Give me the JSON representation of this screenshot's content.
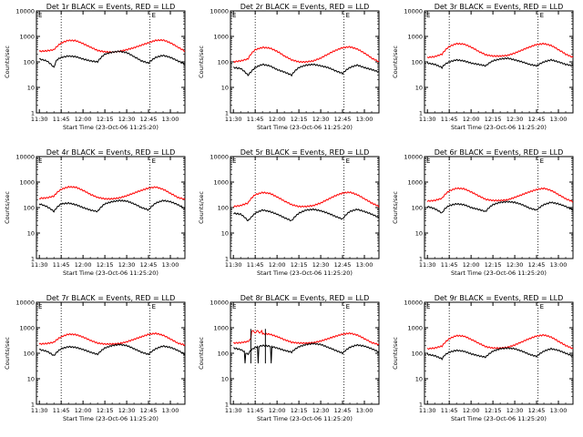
{
  "x_tick_labels_short": [
    "11:30",
    "11:45",
    "12:00",
    "12:15",
    "12:30",
    "12:45",
    "13:00"
  ],
  "panel_row1_col1_ticks": [
    "11:30",
    "11:45",
    "12:00",
    "12:15",
    "12:30",
    "12:45",
    "13:00"
  ],
  "y_tick_labels": [
    "1",
    "10",
    "100",
    "1000",
    "10000"
  ],
  "xlabel": "Start Time (23-Oct-06 11:25:20)",
  "ylabel": "Counts/sec",
  "marker_E": "E",
  "chart_data": [
    {
      "type": "line",
      "title": "Det 1r BLACK = Events, RED = LLD",
      "x_minutes_from_1130": [
        0,
        5,
        10,
        12,
        15,
        20,
        25,
        30,
        35,
        40,
        45,
        50,
        55,
        60,
        65,
        70,
        75,
        80,
        85,
        90,
        95,
        100
      ],
      "series": [
        {
          "name": "Events",
          "color": "#000000",
          "values": [
            120,
            105,
            100,
            60,
            110,
            130,
            140,
            120,
            100,
            200,
            240,
            230,
            200,
            150,
            110,
            90,
            80,
            130,
            150,
            140,
            110,
            90
          ]
        },
        {
          "name": "LLD",
          "color": "#ff0000",
          "values": [
            230,
            250,
            300,
            360,
            460,
            600,
            720,
            600,
            420,
            300,
            240,
            230,
            240,
            280,
            340,
            420,
            520,
            680,
            760,
            620,
            400,
            270
          ]
        }
      ],
      "dotted_x": [
        15,
        78
      ],
      "ylim": [
        1,
        10000
      ],
      "log_y": true
    },
    {
      "type": "line",
      "title": "Det 2r BLACK = Events, RED = LLD",
      "series": [
        {
          "name": "Events",
          "color": "#000000"
        },
        {
          "name": "LLD",
          "color": "#ff0000"
        }
      ]
    },
    {
      "type": "line",
      "title": "Det 3r BLACK = Events, RED = LLD",
      "series": [
        {
          "name": "Events",
          "color": "#000000"
        },
        {
          "name": "LLD",
          "color": "#ff0000"
        }
      ]
    },
    {
      "type": "line",
      "title": "Det 4r BLACK = Events, RED = LLD",
      "series": [
        {
          "name": "Events",
          "color": "#000000"
        },
        {
          "name": "LLD",
          "color": "#ff0000"
        }
      ]
    },
    {
      "type": "line",
      "title": "Det 5r BLACK = Events, RED = LLD",
      "series": [
        {
          "name": "Events",
          "color": "#000000"
        },
        {
          "name": "LLD",
          "color": "#ff0000"
        }
      ]
    },
    {
      "type": "line",
      "title": "Det 6r BLACK = Events, RED = LLD",
      "series": [
        {
          "name": "Events",
          "color": "#000000"
        },
        {
          "name": "LLD",
          "color": "#ff0000"
        }
      ]
    },
    {
      "type": "line",
      "title": "Det 7r BLACK = Events, RED = LLD",
      "series": [
        {
          "name": "Events",
          "color": "#000000"
        },
        {
          "name": "LLD",
          "color": "#ff0000"
        }
      ]
    },
    {
      "type": "line",
      "title": "Det 8r BLACK = Events, RED = LLD",
      "series": [
        {
          "name": "Events",
          "color": "#000000"
        },
        {
          "name": "LLD",
          "color": "#ff0000"
        }
      ]
    },
    {
      "type": "line",
      "title": "Det 9r BLACK = Events, RED = LLD",
      "series": [
        {
          "name": "Events",
          "color": "#000000"
        },
        {
          "name": "LLD",
          "color": "#ff0000"
        }
      ]
    }
  ],
  "panel_x_ticks": [
    [
      "11:30",
      "11:45",
      "12:00",
      "12:15",
      "12:30",
      "12:45",
      "13:00"
    ],
    [
      "11:30",
      "11:45",
      "12:00",
      "12:15",
      "12:30",
      "12:45",
      "13:00"
    ],
    [
      "11:30",
      "11:45",
      "12:00",
      "12:15",
      "12:30",
      "12:45",
      "13:00"
    ],
    [
      "11:30",
      "11:45",
      "12:00",
      "12:15",
      "12:30",
      "12:45",
      "13:00"
    ],
    [
      "11:30",
      "11:45",
      "12:00",
      "12:15",
      "12:30",
      "12:45",
      "13:00"
    ],
    [
      "11:30",
      "11:45",
      "12:00",
      "12:15",
      "12:30",
      "12:45",
      "13:00"
    ],
    [
      "11:30",
      "11:45",
      "12:00",
      "12:15",
      "12:30",
      "12:45",
      "13:00"
    ],
    [
      "11:30",
      "11:45",
      "12:00",
      "12:15",
      "12:30",
      "12:45",
      "13:00"
    ],
    [
      "11:30",
      "11:45",
      "12:00",
      "12:15",
      "12:30",
      "12:45",
      "13:00"
    ]
  ],
  "panel_curves": [
    {
      "events": [
        130,
        110,
        60,
        120,
        150,
        170,
        160,
        130,
        110,
        100,
        200,
        240,
        260,
        230,
        160,
        110,
        90,
        150,
        180,
        150,
        110,
        80
      ],
      "lld": [
        260,
        270,
        300,
        400,
        550,
        700,
        680,
        520,
        380,
        280,
        250,
        240,
        260,
        300,
        360,
        450,
        560,
        700,
        720,
        560,
        380,
        260
      ],
      "dotted": [
        15,
        76
      ],
      "spikes": false
    },
    {
      "events": [
        60,
        55,
        30,
        40,
        60,
        80,
        70,
        50,
        40,
        30,
        60,
        75,
        80,
        70,
        60,
        45,
        35,
        60,
        75,
        60,
        50,
        40
      ],
      "lld": [
        100,
        110,
        130,
        200,
        300,
        370,
        350,
        260,
        170,
        120,
        100,
        100,
        110,
        140,
        200,
        280,
        360,
        390,
        320,
        220,
        140,
        100
      ],
      "dotted": [
        15,
        76
      ],
      "spikes": false
    },
    {
      "events": [
        90,
        80,
        60,
        80,
        100,
        120,
        110,
        90,
        80,
        70,
        110,
        130,
        140,
        120,
        100,
        80,
        70,
        100,
        120,
        100,
        80,
        70
      ],
      "lld": [
        150,
        160,
        200,
        280,
        400,
        520,
        500,
        380,
        260,
        190,
        170,
        170,
        180,
        220,
        290,
        380,
        480,
        520,
        440,
        300,
        200,
        150
      ],
      "dotted": [
        15,
        76
      ],
      "spikes": false
    },
    {
      "events": [
        140,
        110,
        70,
        100,
        140,
        150,
        130,
        100,
        80,
        70,
        140,
        170,
        190,
        180,
        140,
        100,
        80,
        150,
        190,
        170,
        130,
        90
      ],
      "lld": [
        230,
        240,
        280,
        380,
        520,
        650,
        630,
        470,
        330,
        250,
        220,
        220,
        240,
        290,
        370,
        470,
        580,
        640,
        520,
        360,
        250,
        210
      ],
      "dotted": [
        15,
        76
      ],
      "spikes": false
    },
    {
      "events": [
        60,
        55,
        30,
        40,
        60,
        80,
        70,
        55,
        40,
        30,
        60,
        80,
        85,
        75,
        60,
        45,
        35,
        70,
        85,
        70,
        55,
        40
      ],
      "lld": [
        110,
        120,
        150,
        220,
        320,
        390,
        360,
        260,
        180,
        130,
        110,
        110,
        120,
        150,
        210,
        290,
        370,
        400,
        320,
        220,
        150,
        110
      ],
      "dotted": [
        15,
        76
      ],
      "spikes": false
    },
    {
      "events": [
        110,
        90,
        60,
        90,
        120,
        140,
        130,
        100,
        85,
        70,
        130,
        160,
        170,
        160,
        130,
        95,
        80,
        130,
        160,
        140,
        110,
        80
      ],
      "lld": [
        180,
        190,
        230,
        320,
        450,
        570,
        550,
        410,
        290,
        210,
        190,
        190,
        200,
        250,
        320,
        410,
        510,
        570,
        470,
        320,
        220,
        170
      ],
      "dotted": [
        15,
        76
      ],
      "spikes": false
    },
    {
      "events": [
        140,
        120,
        80,
        110,
        150,
        180,
        170,
        140,
        110,
        90,
        160,
        200,
        220,
        200,
        150,
        110,
        90,
        150,
        190,
        170,
        130,
        90
      ],
      "lld": [
        230,
        240,
        270,
        340,
        440,
        560,
        540,
        430,
        320,
        250,
        230,
        230,
        240,
        280,
        350,
        440,
        550,
        600,
        510,
        360,
        250,
        210
      ],
      "dotted": [
        15,
        76
      ],
      "spikes": false
    },
    {
      "events": [
        160,
        140,
        90,
        130,
        170,
        200,
        190,
        160,
        130,
        110,
        180,
        220,
        240,
        220,
        170,
        130,
        100,
        170,
        210,
        190,
        150,
        110
      ],
      "lld": [
        250,
        260,
        290,
        360,
        460,
        580,
        560,
        450,
        340,
        270,
        250,
        250,
        260,
        300,
        370,
        460,
        560,
        610,
        520,
        370,
        260,
        220
      ],
      "dotted": [
        15,
        76
      ],
      "spikes": true
    },
    {
      "events": [
        90,
        80,
        60,
        85,
        110,
        130,
        120,
        95,
        80,
        70,
        120,
        150,
        160,
        150,
        120,
        90,
        75,
        120,
        150,
        130,
        100,
        75
      ],
      "lld": [
        150,
        160,
        190,
        260,
        370,
        490,
        470,
        350,
        250,
        180,
        160,
        160,
        170,
        210,
        280,
        370,
        470,
        520,
        430,
        290,
        200,
        150
      ],
      "dotted": [
        15,
        76
      ],
      "spikes": false
    }
  ]
}
